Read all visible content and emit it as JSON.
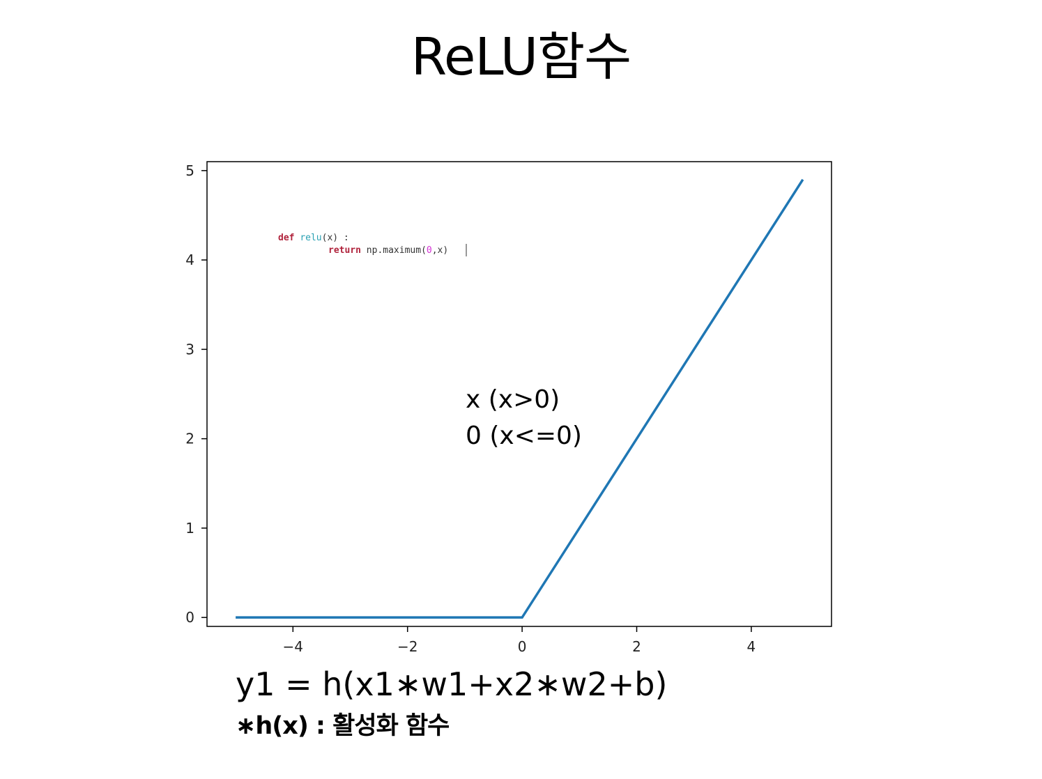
{
  "slide": {
    "title": "ReLU함수",
    "code_line1": {
      "kw": "def",
      "fn": "relu",
      "rest": "(x) :"
    },
    "code_line2": {
      "kw": "return",
      "pre": "np.maximum(",
      "num": "0",
      "post": ",x)"
    },
    "piecewise": [
      "x (x>0)",
      "0 (x<=0)"
    ],
    "equation": "y1 = h(x1∗w1+x2∗w2+b)",
    "footnote": "∗h(x) : 활성화 함수"
  },
  "chart_data": {
    "type": "line",
    "title": "",
    "xlabel": "",
    "ylabel": "",
    "xlim": [
      -5.5,
      5.4
    ],
    "ylim": [
      -0.1,
      5.1
    ],
    "xticks": [
      -4,
      -2,
      0,
      2,
      4
    ],
    "xtick_labels": [
      "−4",
      "−2",
      "0",
      "2",
      "4"
    ],
    "yticks": [
      0,
      1,
      2,
      3,
      4,
      5
    ],
    "ytick_labels": [
      "0",
      "1",
      "2",
      "3",
      "4",
      "5"
    ],
    "grid": false,
    "series": [
      {
        "color": "#1f77b4",
        "x": [
          -5.0,
          0.0,
          4.9
        ],
        "y": [
          0.0,
          0.0,
          4.9
        ]
      }
    ]
  }
}
